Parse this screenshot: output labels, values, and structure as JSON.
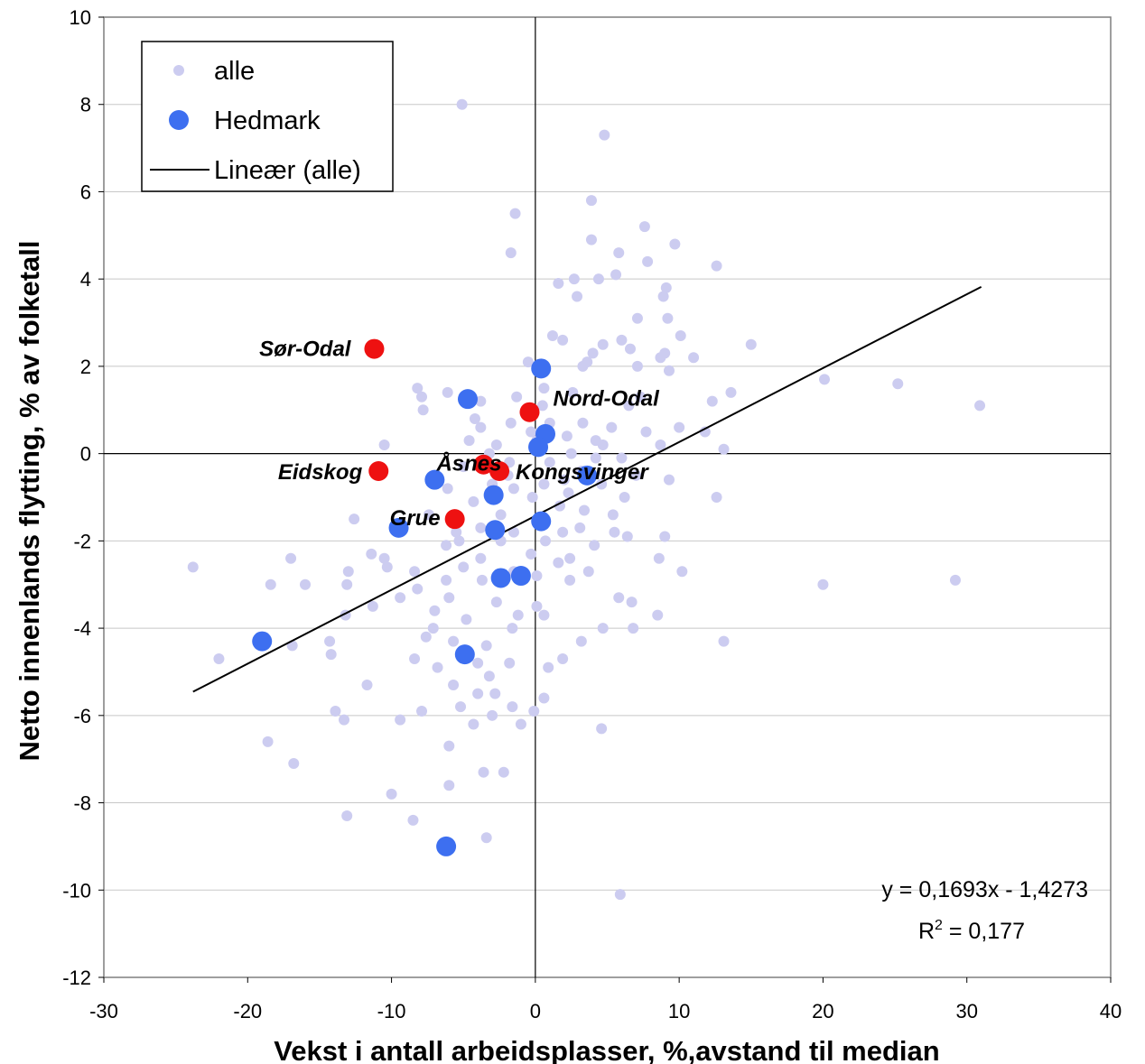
{
  "chart_data": {
    "type": "scatter",
    "xlabel": "Vekst i antall arbeidsplasser, %,avstand til median",
    "ylabel": "Netto innenlands flytting, % av folketall",
    "xlim": [
      -30,
      40
    ],
    "ylim": [
      -12,
      10
    ],
    "x_ticks": [
      -30,
      -20,
      -10,
      0,
      10,
      20,
      30,
      40
    ],
    "y_ticks": [
      10,
      8,
      6,
      4,
      2,
      0,
      -2,
      -4,
      -6,
      -8,
      -10,
      -12
    ],
    "x_tick_labels": [
      "-30",
      "-20",
      "-10",
      "0",
      "10",
      "20",
      "30",
      "40"
    ],
    "y_tick_labels": [
      "10",
      "8",
      "6",
      "4",
      "2",
      "0",
      "-2",
      "-4",
      "-6",
      "-8",
      "-10",
      "-12"
    ],
    "grid": "horizontal",
    "legend": {
      "placement": "top-left",
      "entries": [
        "alle",
        "Hedmark",
        "Lineær (alle)"
      ]
    },
    "colors": {
      "alle": "#ccccf0",
      "hedmark": "#3d6ff0",
      "highlight": "#ee1111",
      "trend": "#000000"
    },
    "trendline": {
      "slope": 0.1693,
      "intercept": -1.4273,
      "x_range": [
        -23.8,
        31.0
      ],
      "equation": "y = 0,1693x - 1,4273",
      "r2_prefix": "R",
      "r2_sup": "2",
      "r2_suffix": " = 0,177"
    },
    "series": [
      {
        "name": "alle",
        "points": [
          [
            -5.1,
            8.0
          ],
          [
            4.8,
            7.3
          ],
          [
            3.9,
            5.8
          ],
          [
            -1.4,
            5.5
          ],
          [
            7.6,
            5.2
          ],
          [
            3.9,
            4.9
          ],
          [
            9.7,
            4.8
          ],
          [
            -1.7,
            4.6
          ],
          [
            5.8,
            4.6
          ],
          [
            7.8,
            4.4
          ],
          [
            12.6,
            4.3
          ],
          [
            5.6,
            4.1
          ],
          [
            2.7,
            4.0
          ],
          [
            4.4,
            4.0
          ],
          [
            1.6,
            3.9
          ],
          [
            9.1,
            3.8
          ],
          [
            2.9,
            3.6
          ],
          [
            8.9,
            3.6
          ],
          [
            7.1,
            3.1
          ],
          [
            9.2,
            3.1
          ],
          [
            1.2,
            2.7
          ],
          [
            1.9,
            2.6
          ],
          [
            10.1,
            2.7
          ],
          [
            6.0,
            2.6
          ],
          [
            4.7,
            2.5
          ],
          [
            15.0,
            2.5
          ],
          [
            6.6,
            2.4
          ],
          [
            4.0,
            2.3
          ],
          [
            9.0,
            2.3
          ],
          [
            11.0,
            2.2
          ],
          [
            8.7,
            2.2
          ],
          [
            3.6,
            2.1
          ],
          [
            -0.5,
            2.1
          ],
          [
            7.1,
            2.0
          ],
          [
            3.3,
            2.0
          ],
          [
            9.3,
            1.9
          ],
          [
            20.1,
            1.7
          ],
          [
            25.2,
            1.6
          ],
          [
            -8.2,
            1.5
          ],
          [
            0.6,
            1.5
          ],
          [
            -6.1,
            1.4
          ],
          [
            2.6,
            1.4
          ],
          [
            -7.9,
            1.3
          ],
          [
            13.6,
            1.4
          ],
          [
            -1.3,
            1.3
          ],
          [
            7.3,
            1.3
          ],
          [
            -3.8,
            1.2
          ],
          [
            0.5,
            1.1
          ],
          [
            6.5,
            1.1
          ],
          [
            12.3,
            1.2
          ],
          [
            -7.8,
            1.0
          ],
          [
            30.9,
            1.1
          ],
          [
            -4.2,
            0.8
          ],
          [
            -1.7,
            0.7
          ],
          [
            1.0,
            0.7
          ],
          [
            3.3,
            0.7
          ],
          [
            5.3,
            0.6
          ],
          [
            10.0,
            0.6
          ],
          [
            -3.8,
            0.6
          ],
          [
            -0.3,
            0.5
          ],
          [
            7.7,
            0.5
          ],
          [
            11.8,
            0.5
          ],
          [
            2.2,
            0.4
          ],
          [
            4.2,
            0.3
          ],
          [
            -4.6,
            0.3
          ],
          [
            0.1,
            0.3
          ],
          [
            -10.5,
            0.2
          ],
          [
            4.7,
            0.2
          ],
          [
            -2.7,
            0.2
          ],
          [
            8.7,
            0.2
          ],
          [
            13.1,
            0.1
          ],
          [
            -3.2,
            0.0
          ],
          [
            2.5,
            0.0
          ],
          [
            4.2,
            -0.1
          ],
          [
            6.0,
            -0.1
          ],
          [
            -1.8,
            -0.2
          ],
          [
            1.0,
            -0.2
          ],
          [
            -5.0,
            -0.3
          ],
          [
            3.2,
            -0.4
          ],
          [
            7.0,
            -0.5
          ],
          [
            -1.9,
            -0.5
          ],
          [
            2.0,
            -0.6
          ],
          [
            9.3,
            -0.6
          ],
          [
            -3.0,
            -0.7
          ],
          [
            0.6,
            -0.7
          ],
          [
            4.6,
            -0.7
          ],
          [
            -6.1,
            -0.8
          ],
          [
            -1.5,
            -0.8
          ],
          [
            2.3,
            -0.9
          ],
          [
            6.2,
            -1.0
          ],
          [
            -0.2,
            -1.0
          ],
          [
            12.6,
            -1.0
          ],
          [
            -4.3,
            -1.1
          ],
          [
            1.7,
            -1.2
          ],
          [
            3.4,
            -1.3
          ],
          [
            -2.4,
            -1.4
          ],
          [
            -7.4,
            -1.4
          ],
          [
            5.4,
            -1.4
          ],
          [
            -12.6,
            -1.5
          ],
          [
            0.2,
            -1.5
          ],
          [
            -3.8,
            -1.7
          ],
          [
            -9.2,
            -1.7
          ],
          [
            3.1,
            -1.7
          ],
          [
            -5.5,
            -1.8
          ],
          [
            1.9,
            -1.8
          ],
          [
            5.5,
            -1.8
          ],
          [
            -1.5,
            -1.8
          ],
          [
            9.0,
            -1.9
          ],
          [
            6.4,
            -1.9
          ],
          [
            -5.3,
            -2.0
          ],
          [
            -2.4,
            -2.0
          ],
          [
            0.7,
            -2.0
          ],
          [
            4.1,
            -2.1
          ],
          [
            -6.2,
            -2.1
          ],
          [
            -11.4,
            -2.3
          ],
          [
            -0.3,
            -2.3
          ],
          [
            2.4,
            -2.4
          ],
          [
            -3.8,
            -2.4
          ],
          [
            -10.5,
            -2.4
          ],
          [
            8.6,
            -2.4
          ],
          [
            1.6,
            -2.5
          ],
          [
            -5.0,
            -2.6
          ],
          [
            -10.3,
            -2.6
          ],
          [
            -8.4,
            -2.7
          ],
          [
            3.7,
            -2.7
          ],
          [
            -1.5,
            -2.7
          ],
          [
            10.2,
            -2.7
          ],
          [
            -13.0,
            -2.7
          ],
          [
            -23.8,
            -2.6
          ],
          [
            -17.0,
            -2.4
          ],
          [
            0.1,
            -2.8
          ],
          [
            2.4,
            -2.9
          ],
          [
            -6.2,
            -2.9
          ],
          [
            -3.7,
            -2.9
          ],
          [
            -18.4,
            -3.0
          ],
          [
            -8.2,
            -3.1
          ],
          [
            -16.0,
            -3.0
          ],
          [
            -13.1,
            -3.0
          ],
          [
            29.2,
            -2.9
          ],
          [
            20.0,
            -3.0
          ],
          [
            -9.4,
            -3.3
          ],
          [
            -6.0,
            -3.3
          ],
          [
            -2.7,
            -3.4
          ],
          [
            0.1,
            -3.5
          ],
          [
            5.8,
            -3.3
          ],
          [
            6.7,
            -3.4
          ],
          [
            -11.3,
            -3.5
          ],
          [
            -7.0,
            -3.6
          ],
          [
            -1.2,
            -3.7
          ],
          [
            0.6,
            -3.7
          ],
          [
            8.5,
            -3.7
          ],
          [
            -13.2,
            -3.7
          ],
          [
            -4.8,
            -3.8
          ],
          [
            -7.1,
            -4.0
          ],
          [
            -1.6,
            -4.0
          ],
          [
            4.7,
            -4.0
          ],
          [
            6.8,
            -4.0
          ],
          [
            -7.6,
            -4.2
          ],
          [
            -5.7,
            -4.3
          ],
          [
            -14.3,
            -4.3
          ],
          [
            -16.9,
            -4.4
          ],
          [
            3.2,
            -4.3
          ],
          [
            13.1,
            -4.3
          ],
          [
            -3.4,
            -4.4
          ],
          [
            -22.0,
            -4.7
          ],
          [
            -8.4,
            -4.7
          ],
          [
            1.9,
            -4.7
          ],
          [
            -4.0,
            -4.8
          ],
          [
            -1.8,
            -4.8
          ],
          [
            -14.2,
            -4.6
          ],
          [
            -6.8,
            -4.9
          ],
          [
            0.9,
            -4.9
          ],
          [
            -3.2,
            -5.1
          ],
          [
            -5.7,
            -5.3
          ],
          [
            -11.7,
            -5.3
          ],
          [
            -4.0,
            -5.5
          ],
          [
            -2.8,
            -5.5
          ],
          [
            0.6,
            -5.6
          ],
          [
            -5.2,
            -5.8
          ],
          [
            -1.6,
            -5.8
          ],
          [
            -7.9,
            -5.9
          ],
          [
            -0.1,
            -5.9
          ],
          [
            -13.9,
            -5.9
          ],
          [
            -9.4,
            -6.1
          ],
          [
            -13.3,
            -6.1
          ],
          [
            -4.3,
            -6.2
          ],
          [
            -1.0,
            -6.2
          ],
          [
            -3.0,
            -6.0
          ],
          [
            4.6,
            -6.3
          ],
          [
            -18.6,
            -6.6
          ],
          [
            -6.0,
            -6.7
          ],
          [
            -16.8,
            -7.1
          ],
          [
            -3.6,
            -7.3
          ],
          [
            -2.2,
            -7.3
          ],
          [
            -6.0,
            -7.6
          ],
          [
            -10.0,
            -7.8
          ],
          [
            -13.1,
            -8.3
          ],
          [
            -8.5,
            -8.4
          ],
          [
            -3.4,
            -8.8
          ],
          [
            5.9,
            -10.1
          ]
        ]
      },
      {
        "name": "Hedmark",
        "points": [
          [
            0.4,
            1.95
          ],
          [
            -4.7,
            1.25
          ],
          [
            0.7,
            0.45
          ],
          [
            0.2,
            0.15
          ],
          [
            -7.0,
            -0.6
          ],
          [
            3.6,
            -0.5
          ],
          [
            -2.9,
            -0.95
          ],
          [
            -9.5,
            -1.7
          ],
          [
            -2.8,
            -1.75
          ],
          [
            0.4,
            -1.55
          ],
          [
            -2.4,
            -2.85
          ],
          [
            -1.0,
            -2.8
          ],
          [
            -19.0,
            -4.3
          ],
          [
            -4.9,
            -4.6
          ],
          [
            -6.2,
            -9.0
          ]
        ]
      },
      {
        "name": "highlighted",
        "points": [
          [
            -11.2,
            2.4
          ],
          [
            -0.4,
            0.95
          ],
          [
            -10.9,
            -0.4
          ],
          [
            -3.6,
            -0.25
          ],
          [
            -2.5,
            -0.4
          ],
          [
            -5.6,
            -1.5
          ]
        ]
      }
    ],
    "annotations": [
      {
        "label": "Sør-Odal",
        "x": -11.2,
        "y": 2.4
      },
      {
        "label": "Nord-Odal",
        "x": -0.4,
        "y": 0.95
      },
      {
        "label": "Eidskog",
        "x": -10.9,
        "y": -0.4
      },
      {
        "label": "Åsnes",
        "x": -3.6,
        "y": -0.25
      },
      {
        "label": "Kongsvinger",
        "x": -2.5,
        "y": -0.4
      },
      {
        "label": "Grue",
        "x": -5.6,
        "y": -1.5
      }
    ]
  }
}
